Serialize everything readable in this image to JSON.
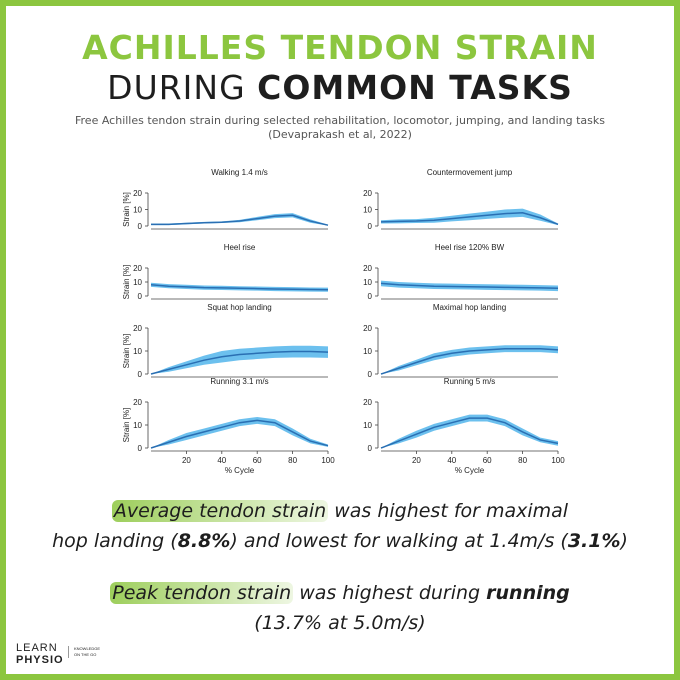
{
  "header": {
    "title_line1": "ACHILLES TENDON STRAIN",
    "title_line2a": "DURING ",
    "title_line2b": "COMMON TASKS",
    "subtitle_line1": "Free Achilles tendon strain during selected rehabilitation, locomotor, jumping, and landing tasks",
    "subtitle_line2": "(Devaprakash et al, 2022)"
  },
  "chart_data": [
    {
      "type": "line",
      "title": "Walking 1.4 m/s",
      "ylabel": "Strain [%]",
      "x": [
        0,
        10,
        20,
        30,
        40,
        50,
        60,
        70,
        80,
        90,
        100
      ],
      "values": [
        1,
        1,
        1.5,
        2,
        2.3,
        3,
        4.5,
        6,
        6.5,
        3,
        0.5
      ],
      "lower": [
        0.5,
        0.5,
        1,
        1.5,
        1.8,
        2.3,
        3.5,
        4.8,
        5.2,
        2,
        0.2
      ],
      "upper": [
        1.5,
        1.5,
        2,
        2.5,
        2.8,
        3.7,
        5.5,
        7.2,
        7.8,
        4,
        0.8
      ],
      "color": "#2a6fb3",
      "band_color": "#6cc0ee",
      "xlim": [
        0,
        100
      ],
      "ylim": [
        0,
        20
      ],
      "yticks": [
        0,
        10,
        20
      ]
    },
    {
      "type": "line",
      "title": "Countermovement jump",
      "x": [
        0,
        10,
        20,
        30,
        40,
        50,
        60,
        70,
        80,
        90,
        100
      ],
      "values": [
        2.5,
        2.8,
        3,
        3.5,
        4.5,
        5.5,
        6.5,
        7.5,
        8,
        5,
        1
      ],
      "lower": [
        1.5,
        1.6,
        1.8,
        2,
        2.8,
        3.5,
        4.3,
        5,
        5.5,
        3.2,
        0.5
      ],
      "upper": [
        3.5,
        4,
        4.2,
        5,
        6.2,
        7.5,
        8.7,
        10,
        10.5,
        7,
        1.5
      ],
      "color": "#2a6fb3",
      "band_color": "#6cc0ee",
      "xlim": [
        0,
        100
      ],
      "ylim": [
        0,
        20
      ],
      "yticks": [
        0,
        10,
        20
      ]
    },
    {
      "type": "line",
      "title": "Heel rise",
      "ylabel": "Strain [%]",
      "x": [
        0,
        10,
        20,
        30,
        40,
        50,
        60,
        70,
        80,
        90,
        100
      ],
      "values": [
        8,
        7,
        6.5,
        6,
        5.8,
        5.5,
        5.3,
        5,
        4.8,
        4.6,
        4.5
      ],
      "lower": [
        6.5,
        5.5,
        5,
        4.5,
        4.3,
        4,
        3.8,
        3.5,
        3.3,
        3.1,
        3
      ],
      "upper": [
        9.5,
        8.5,
        8,
        7.5,
        7.3,
        7,
        6.8,
        6.5,
        6.3,
        6.1,
        6
      ],
      "color": "#2a6fb3",
      "band_color": "#6cc0ee",
      "xlim": [
        0,
        100
      ],
      "ylim": [
        0,
        20
      ],
      "yticks": [
        0,
        10,
        20
      ]
    },
    {
      "type": "line",
      "title": "Heel rise 120% BW",
      "x": [
        0,
        10,
        20,
        30,
        40,
        50,
        60,
        70,
        80,
        90,
        100
      ],
      "values": [
        9,
        8,
        7.5,
        7,
        6.8,
        6.6,
        6.4,
        6.2,
        6,
        5.8,
        5.5
      ],
      "lower": [
        7,
        6,
        5.5,
        5,
        4.8,
        4.6,
        4.4,
        4.2,
        4,
        3.8,
        3.5
      ],
      "upper": [
        11,
        10,
        9.5,
        9,
        8.8,
        8.6,
        8.4,
        8.2,
        8,
        7.8,
        7.5
      ],
      "color": "#2a6fb3",
      "band_color": "#6cc0ee",
      "xlim": [
        0,
        100
      ],
      "ylim": [
        0,
        20
      ],
      "yticks": [
        0,
        10,
        20
      ]
    },
    {
      "type": "line",
      "title": "Squat hop landing",
      "ylabel": "Strain [%]",
      "x": [
        0,
        10,
        20,
        30,
        40,
        50,
        60,
        70,
        80,
        90,
        100
      ],
      "values": [
        0,
        2,
        4,
        6,
        7.5,
        8.5,
        9,
        9.5,
        9.8,
        9.8,
        9.5
      ],
      "lower": [
        0,
        1,
        2.5,
        4,
        5,
        6,
        6.5,
        7,
        7.2,
        7.2,
        7
      ],
      "upper": [
        0,
        3,
        5.5,
        8,
        10,
        11,
        11.5,
        12,
        12.3,
        12.3,
        12
      ],
      "color": "#2a6fb3",
      "band_color": "#6cc0ee",
      "xlim": [
        0,
        100
      ],
      "ylim": [
        0,
        20
      ],
      "yticks": [
        0,
        10,
        20
      ]
    },
    {
      "type": "line",
      "title": "Maximal hop landing",
      "x": [
        0,
        10,
        20,
        30,
        40,
        50,
        60,
        70,
        80,
        90,
        100
      ],
      "values": [
        0,
        2.5,
        5,
        7.5,
        9,
        10,
        10.5,
        11,
        11,
        11,
        10.5
      ],
      "lower": [
        0,
        1.5,
        3.8,
        6,
        7.5,
        8.5,
        9,
        9.5,
        9.5,
        9.5,
        9
      ],
      "upper": [
        0,
        3.5,
        6.2,
        9,
        10.5,
        11.5,
        12,
        12.5,
        12.5,
        12.5,
        12
      ],
      "color": "#2a6fb3",
      "band_color": "#6cc0ee",
      "xlim": [
        0,
        100
      ],
      "ylim": [
        0,
        20
      ],
      "yticks": [
        0,
        10,
        20
      ]
    },
    {
      "type": "line",
      "title": "Running 3.1 m/s",
      "ylabel": "Strain [%]",
      "xlabel": "% Cycle",
      "x": [
        0,
        10,
        20,
        30,
        40,
        50,
        60,
        70,
        80,
        90,
        100
      ],
      "values": [
        0,
        2.5,
        5,
        7,
        9,
        11,
        12,
        11,
        7,
        3,
        1
      ],
      "lower": [
        0,
        1.5,
        3.5,
        5.5,
        7.5,
        9.5,
        10.5,
        9.5,
        5.5,
        2,
        0.5
      ],
      "upper": [
        0,
        3.5,
        6.5,
        8.5,
        10.5,
        12.5,
        13.5,
        12.5,
        8.5,
        4,
        1.5
      ],
      "color": "#2a6fb3",
      "band_color": "#6cc0ee",
      "xlim": [
        0,
        100
      ],
      "ylim": [
        0,
        20
      ],
      "yticks": [
        0,
        10,
        20
      ],
      "xticks": [
        20,
        40,
        60,
        80,
        100
      ]
    },
    {
      "type": "line",
      "title": "Running 5 m/s",
      "xlabel": "% Cycle",
      "x": [
        0,
        10,
        20,
        30,
        40,
        50,
        60,
        70,
        80,
        90,
        100
      ],
      "values": [
        0,
        3,
        6,
        9,
        11,
        13,
        13,
        11,
        7,
        3.5,
        2
      ],
      "lower": [
        0,
        2,
        4.5,
        7.5,
        9.5,
        11.5,
        11.5,
        9.5,
        5.5,
        2.5,
        1
      ],
      "upper": [
        0,
        4,
        7.5,
        10.5,
        12.5,
        14.5,
        14.5,
        12.5,
        8.5,
        4.5,
        3
      ],
      "color": "#2a6fb3",
      "band_color": "#6cc0ee",
      "xlim": [
        0,
        100
      ],
      "ylim": [
        0,
        20
      ],
      "yticks": [
        0,
        10,
        20
      ],
      "xticks": [
        20,
        40,
        60,
        80,
        100
      ]
    }
  ],
  "findings": [
    [
      "Average tendon strain",
      " was highest for maximal",
      "hop landing (",
      "8.8%",
      ") and lowest for walking at 1.4m/s (",
      "3.1%",
      ")"
    ],
    [
      "Peak tendon strain",
      " was highest during ",
      "running",
      "(13.7% at 5.0m/s)"
    ]
  ],
  "footer": {
    "logo_line1": "LEARN",
    "logo_line2": "PHYSIO",
    "tagline_line1": "KNOWLEDGE",
    "tagline_line2": "ON THE GO"
  }
}
